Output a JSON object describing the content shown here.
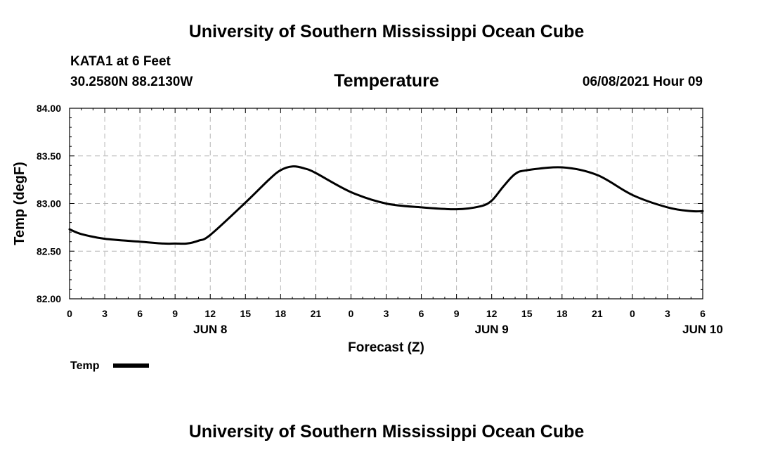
{
  "header": {
    "title": "University of Southern Mississippi Ocean Cube",
    "station": "KATA1 at 6 Feet",
    "coordinates": "30.2580N  88.2130W",
    "datetime": "06/08/2021 Hour 09"
  },
  "footer": {
    "title": "University of Southern Mississippi Ocean Cube"
  },
  "chart_data": {
    "type": "line",
    "title": "Temperature",
    "xlabel": "Forecast (Z)",
    "ylabel": "Temp (degF)",
    "ylim": [
      82.0,
      84.0
    ],
    "yticks": [
      82.0,
      82.5,
      83.0,
      83.5,
      84.0
    ],
    "ytick_labels": [
      "82.00",
      "82.50",
      "83.00",
      "83.50",
      "84.00"
    ],
    "xlim": [
      0,
      54
    ],
    "xtick_hours": [
      0,
      3,
      6,
      9,
      12,
      15,
      18,
      21,
      24,
      27,
      30,
      33,
      36,
      39,
      42,
      45,
      48,
      51,
      54
    ],
    "xtick_labels": [
      "0",
      "3",
      "6",
      "9",
      "12",
      "15",
      "18",
      "21",
      "0",
      "3",
      "6",
      "9",
      "12",
      "15",
      "18",
      "21",
      "0",
      "3",
      "6"
    ],
    "date_labels": [
      {
        "hour": 12,
        "label": "JUN 8"
      },
      {
        "hour": 36,
        "label": "JUN 9"
      },
      {
        "hour": 54,
        "label": "JUN 10"
      }
    ],
    "grid": true,
    "legend": {
      "label": "Temp",
      "placement": "bottom-left"
    },
    "series": [
      {
        "name": "Temp",
        "color": "#000000",
        "x": [
          0,
          1,
          3,
          6,
          8,
          9,
          10,
          11,
          12,
          15,
          17,
          18,
          19,
          20,
          21,
          24,
          27,
          30,
          33,
          35,
          36,
          37,
          38,
          39,
          42,
          45,
          48,
          51,
          53,
          54
        ],
        "y": [
          82.73,
          82.68,
          82.63,
          82.6,
          82.58,
          82.58,
          82.58,
          82.61,
          82.67,
          83.01,
          83.25,
          83.35,
          83.39,
          83.37,
          83.32,
          83.12,
          83.0,
          82.96,
          82.94,
          82.97,
          83.03,
          83.18,
          83.31,
          83.35,
          83.38,
          83.3,
          83.09,
          82.96,
          82.92,
          82.92
        ]
      }
    ]
  }
}
